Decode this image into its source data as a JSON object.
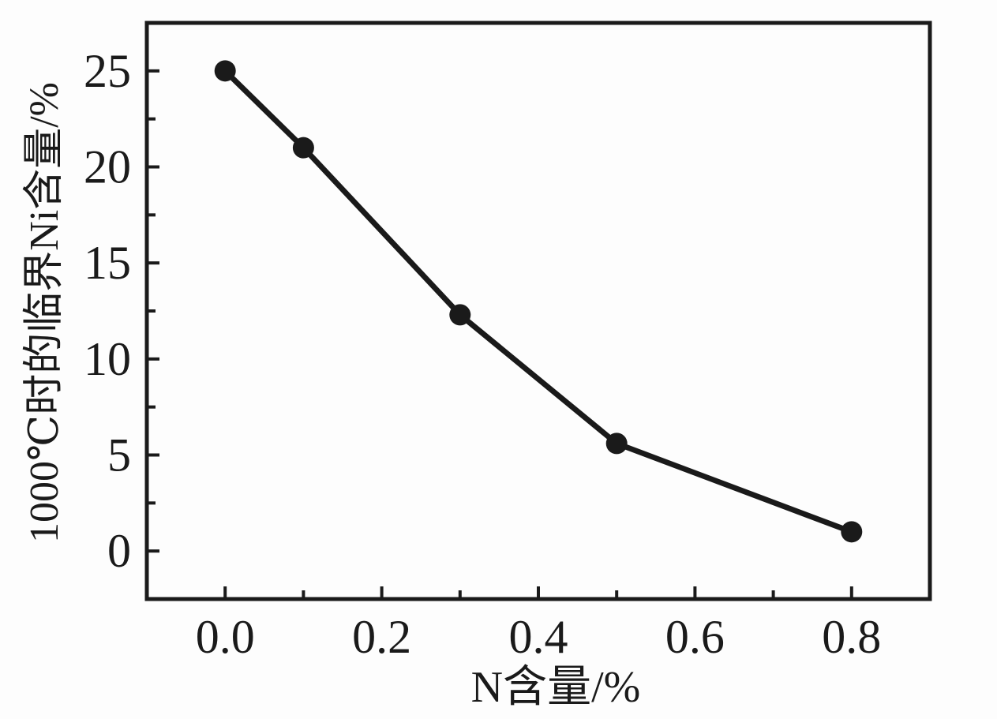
{
  "figure": {
    "background": "#fdfdfd",
    "ink_color": "#1a1a1a"
  },
  "chart_data": {
    "type": "line",
    "title": "",
    "xlabel": "N含量/%",
    "ylabel": "1000℃时的临界Ni含量/%",
    "x": [
      0.0,
      0.1,
      0.3,
      0.5,
      0.8
    ],
    "values": [
      25.0,
      21.0,
      12.3,
      5.6,
      1.0
    ],
    "xlim": [
      -0.1,
      0.9
    ],
    "ylim": [
      -2.5,
      27.5
    ],
    "xticks": {
      "major": [
        0.0,
        0.2,
        0.4,
        0.6,
        0.8
      ],
      "major_labels": [
        "0.0",
        "0.2",
        "0.4",
        "0.6",
        "0.8"
      ],
      "minor": [
        0.1,
        0.3,
        0.5,
        0.7
      ]
    },
    "yticks": {
      "major": [
        0,
        5,
        10,
        15,
        20,
        25
      ],
      "major_labels": [
        "0",
        "5",
        "10",
        "15",
        "20",
        "25"
      ],
      "minor": [
        2.5,
        7.5,
        12.5,
        17.5,
        22.5
      ]
    },
    "grid": false,
    "legend": false,
    "marker": "filled-circle",
    "line_color": "#1a1a1a",
    "marker_color": "#1a1a1a"
  }
}
